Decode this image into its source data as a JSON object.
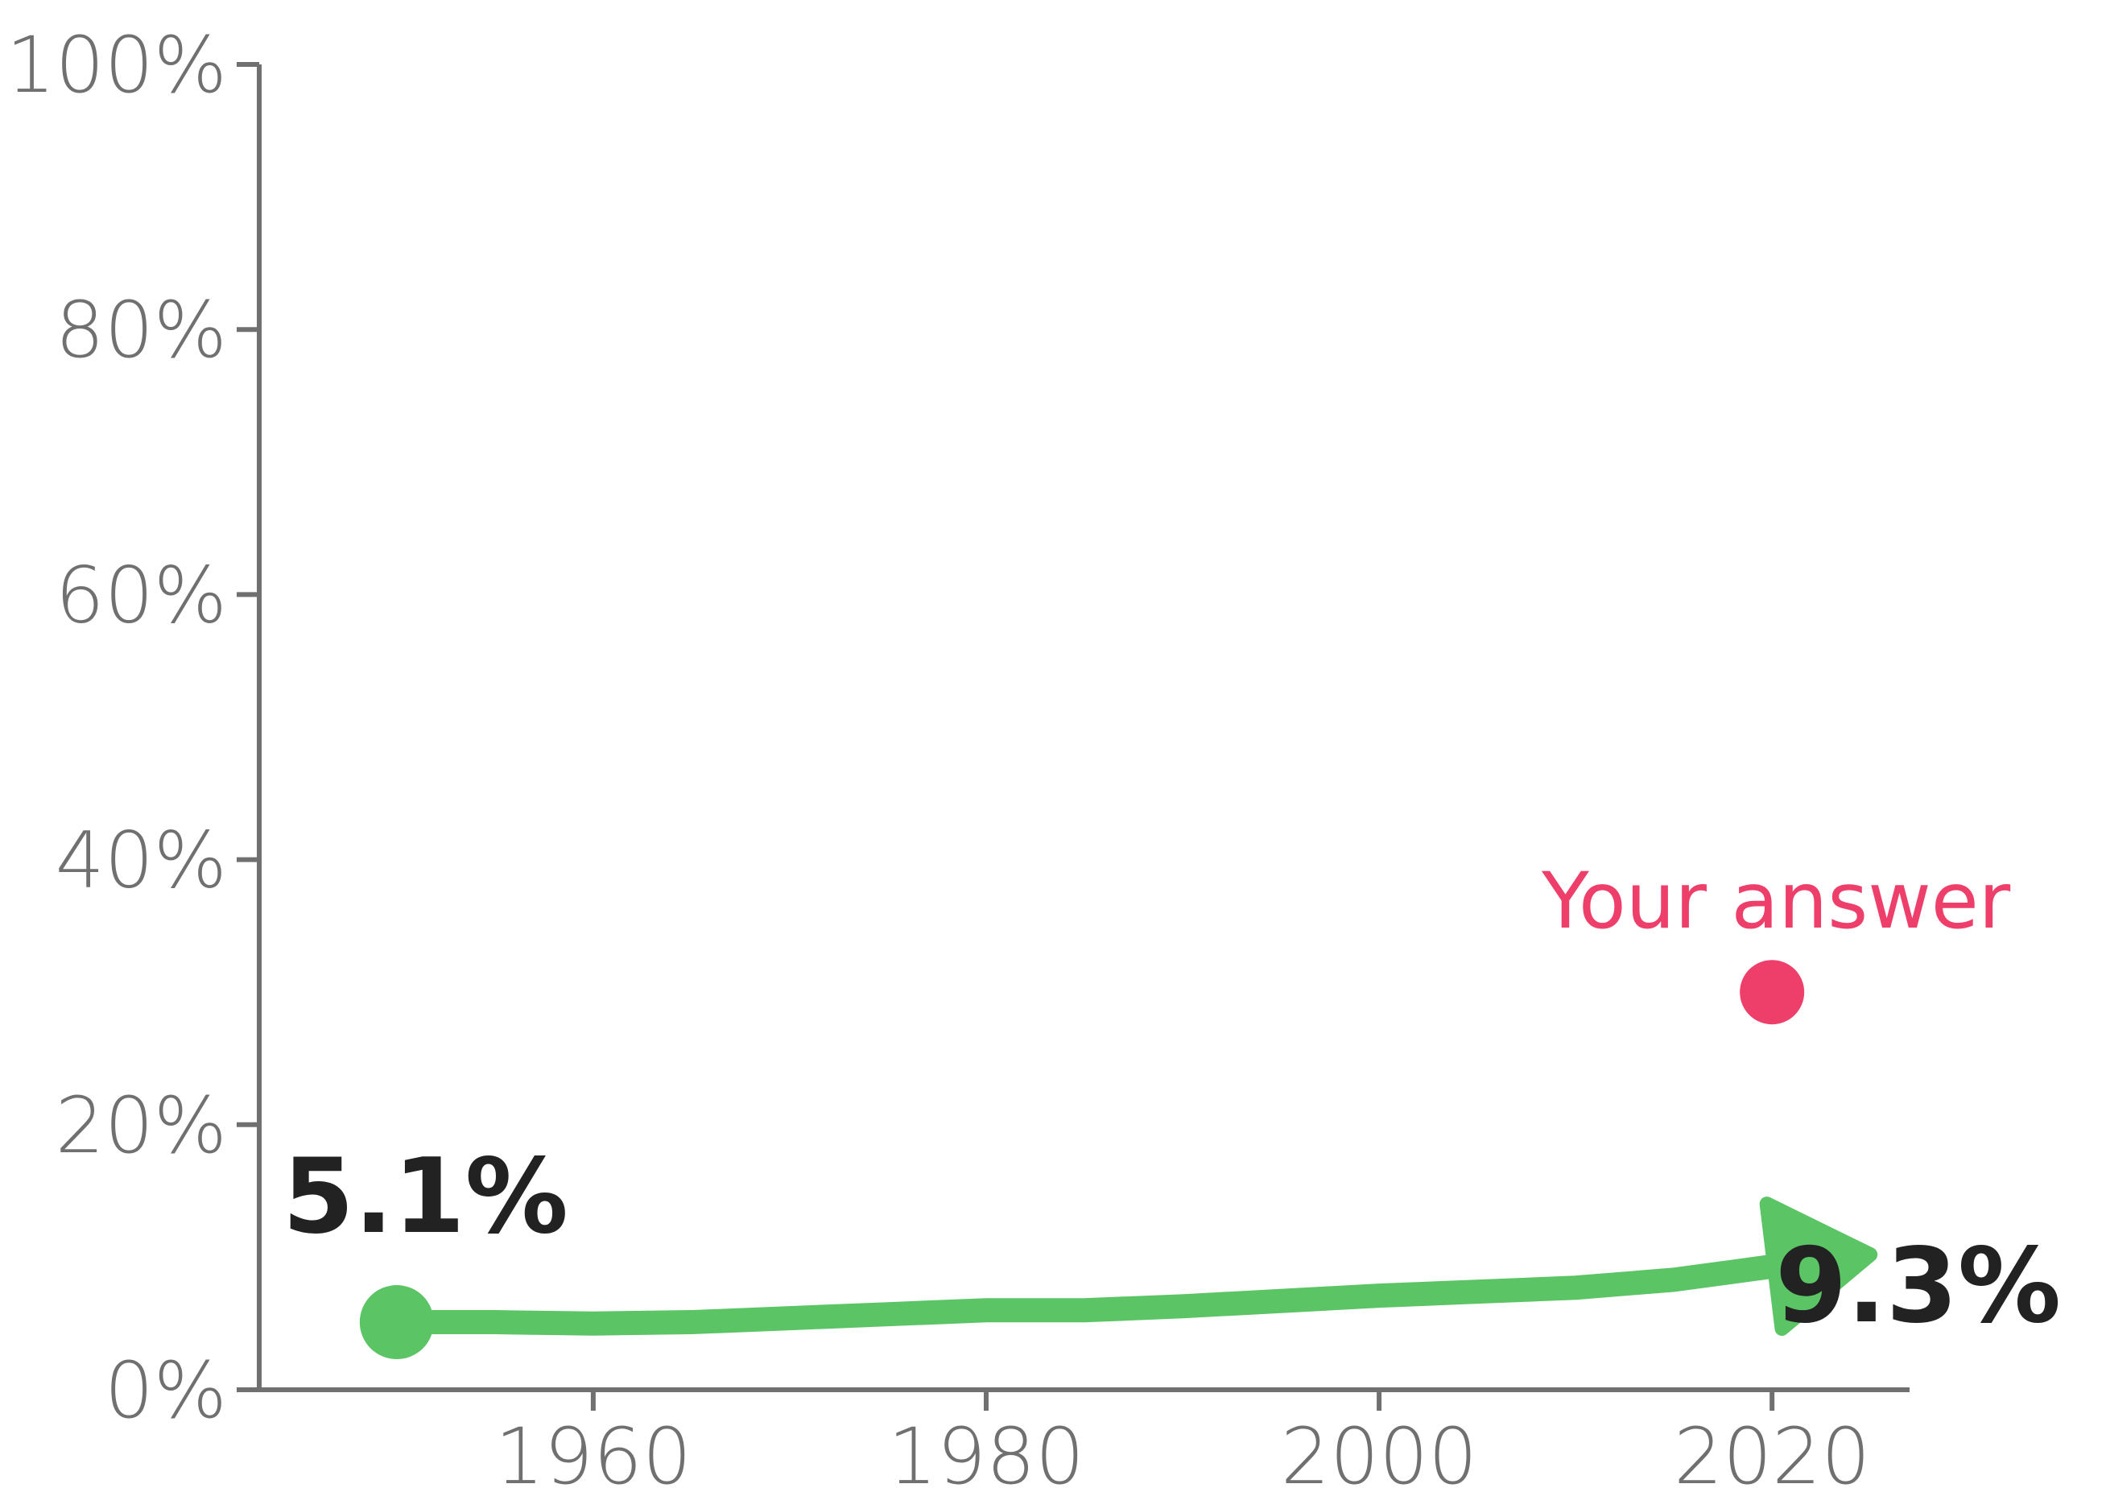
{
  "chart_data": {
    "type": "line",
    "x": [
      1950,
      1955,
      1960,
      1965,
      1970,
      1975,
      1980,
      1985,
      1990,
      1995,
      2000,
      2005,
      2010,
      2015,
      2020,
      2025
    ],
    "series": [
      {
        "values": [
          5.1,
          5.1,
          5.0,
          5.1,
          5.4,
          5.7,
          6.0,
          6.0,
          6.3,
          6.7,
          7.1,
          7.4,
          7.7,
          8.3,
          9.3,
          10.2
        ]
      }
    ],
    "xticks": [
      "1960",
      "1980",
      "2000",
      "2020"
    ],
    "xtick_values": [
      1960,
      1980,
      2000,
      2020
    ],
    "yticks": [
      "0%",
      "20%",
      "40%",
      "60%",
      "80%",
      "100%"
    ],
    "ytick_values": [
      0,
      20,
      40,
      60,
      80,
      100
    ],
    "xlim": [
      1943,
      2027
    ],
    "ylim": [
      0,
      100
    ],
    "start_label": "5.1%",
    "end_label": "9.3%",
    "start_value": 5.1,
    "end_value": 9.3,
    "answer": {
      "label": "Your answer",
      "x": 2020,
      "y": 30
    },
    "grid": false,
    "colors": {
      "line": "#5BC465",
      "answer": "#EE3F6B",
      "axis": "#707070",
      "label": "#222222"
    }
  }
}
